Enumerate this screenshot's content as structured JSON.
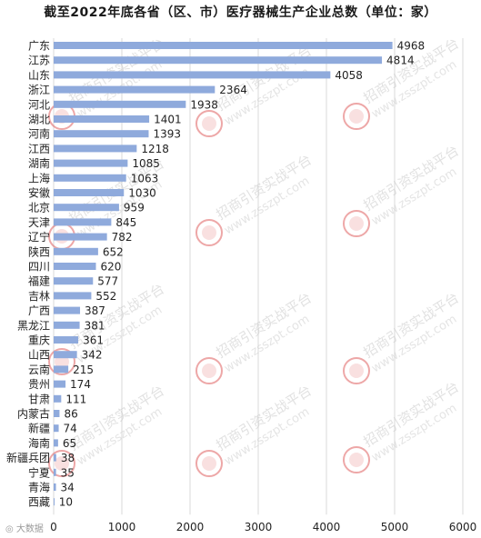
{
  "chart_data": {
    "type": "bar",
    "orientation": "horizontal",
    "title": "截至2022年底各省（区、市）医疗器械生产企业总数（单位：家）",
    "categories": [
      "广东",
      "江苏",
      "山东",
      "浙江",
      "河北",
      "湖北",
      "河南",
      "江西",
      "湖南",
      "上海",
      "安徽",
      "北京",
      "天津",
      "辽宁",
      "陕西",
      "四川",
      "福建",
      "吉林",
      "广西",
      "黑龙江",
      "重庆",
      "山西",
      "云南",
      "贵州",
      "甘肃",
      "内蒙古",
      "新疆",
      "海南",
      "新疆兵团",
      "宁夏",
      "青海",
      "西藏"
    ],
    "values": [
      4968,
      4814,
      4058,
      2364,
      1938,
      1401,
      1393,
      1218,
      1085,
      1063,
      1030,
      959,
      845,
      782,
      652,
      620,
      577,
      552,
      387,
      381,
      361,
      342,
      215,
      174,
      111,
      86,
      74,
      65,
      38,
      35,
      34,
      10
    ],
    "xlim": [
      0,
      6000
    ],
    "xticks": [
      "0",
      "1000",
      "2000",
      "3000",
      "4000",
      "5000",
      "6000"
    ],
    "grid": "vertical",
    "bar_color": "#8faadc"
  },
  "watermark": {
    "text": "招商引资实战平台",
    "url": "www.zsszpt.com",
    "color": "#e06060"
  },
  "footer": {
    "logo_text": "大数据"
  }
}
